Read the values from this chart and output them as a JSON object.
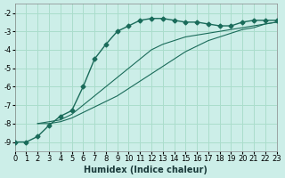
{
  "xlabel": "Humidex (Indice chaleur)",
  "bg_color": "#cceee8",
  "grid_color": "#aaddcc",
  "line_color": "#1a6b5a",
  "xlim": [
    0,
    23
  ],
  "ylim": [
    -9.5,
    -1.5
  ],
  "yticks": [
    -9,
    -8,
    -7,
    -6,
    -5,
    -4,
    -3,
    -2
  ],
  "xticks": [
    0,
    1,
    2,
    3,
    4,
    5,
    6,
    7,
    8,
    9,
    10,
    11,
    12,
    13,
    14,
    15,
    16,
    17,
    18,
    19,
    20,
    21,
    22,
    23
  ],
  "series": [
    {
      "x": [
        0,
        1,
        2,
        3,
        4,
        5,
        6,
        7,
        8,
        9,
        10,
        11,
        12,
        13,
        14,
        15,
        16,
        17,
        18,
        19,
        20,
        21,
        22,
        23
      ],
      "y": [
        -9.0,
        -9.0,
        -8.7,
        -8.1,
        -7.6,
        -7.3,
        -6.0,
        -4.5,
        -3.7,
        -3.0,
        -2.7,
        -2.4,
        -2.3,
        -2.3,
        -2.4,
        -2.5,
        -2.5,
        -2.6,
        -2.7,
        -2.7,
        -2.5,
        -2.4,
        -2.4,
        -2.4
      ],
      "marker": "D",
      "markersize": 2.5
    },
    {
      "x": [
        2,
        3,
        4,
        5,
        6,
        7,
        8,
        9,
        10,
        11,
        12,
        13,
        14,
        15,
        16,
        17,
        18,
        19,
        20,
        21,
        22,
        23
      ],
      "y": [
        -8.0,
        -7.9,
        -7.8,
        -7.5,
        -7.0,
        -6.5,
        -6.0,
        -5.5,
        -5.0,
        -4.5,
        -4.0,
        -3.7,
        -3.5,
        -3.3,
        -3.2,
        -3.1,
        -3.0,
        -2.9,
        -2.8,
        -2.7,
        -2.6,
        -2.5
      ],
      "marker": "",
      "markersize": 0
    },
    {
      "x": [
        2,
        3,
        4,
        5,
        6,
        7,
        8,
        9,
        10,
        11,
        12,
        13,
        14,
        15,
        16,
        17,
        18,
        19,
        20,
        21,
        22,
        23
      ],
      "y": [
        -8.0,
        -8.0,
        -7.9,
        -7.7,
        -7.4,
        -7.1,
        -6.8,
        -6.5,
        -6.1,
        -5.7,
        -5.3,
        -4.9,
        -4.5,
        -4.1,
        -3.8,
        -3.5,
        -3.3,
        -3.1,
        -2.9,
        -2.8,
        -2.6,
        -2.5
      ],
      "marker": "",
      "markersize": 0
    }
  ]
}
